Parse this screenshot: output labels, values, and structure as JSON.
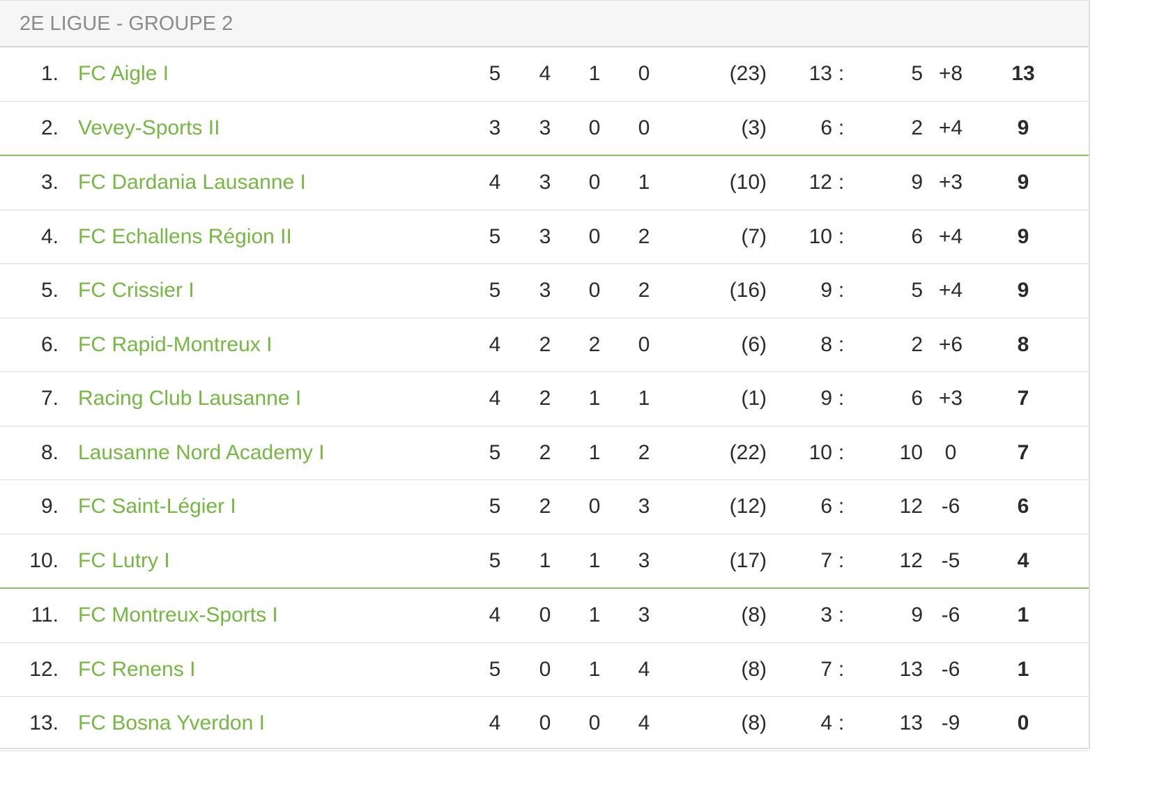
{
  "group": {
    "title": "2E LIGUE - GROUPE 2"
  },
  "colors": {
    "team_link": "#74b842",
    "divider": "#8bbf62"
  },
  "standings": [
    {
      "rank": "1.",
      "team": "FC Aigle I",
      "played": "5",
      "won": "4",
      "drawn": "1",
      "lost": "0",
      "fair_play": "(23)",
      "goals_for": "13",
      "colon": ":",
      "goals_against": "5",
      "diff": "+8",
      "points": "13"
    },
    {
      "rank": "2.",
      "team": "Vevey-Sports II",
      "played": "3",
      "won": "3",
      "drawn": "0",
      "lost": "0",
      "fair_play": "(3)",
      "goals_for": "6",
      "colon": ":",
      "goals_against": "2",
      "diff": "+4",
      "points": "9"
    },
    {
      "rank": "3.",
      "team": "FC Dardania Lausanne I",
      "played": "4",
      "won": "3",
      "drawn": "0",
      "lost": "1",
      "fair_play": "(10)",
      "goals_for": "12",
      "colon": ":",
      "goals_against": "9",
      "diff": "+3",
      "points": "9"
    },
    {
      "rank": "4.",
      "team": "FC Echallens Région II",
      "played": "5",
      "won": "3",
      "drawn": "0",
      "lost": "2",
      "fair_play": "(7)",
      "goals_for": "10",
      "colon": ":",
      "goals_against": "6",
      "diff": "+4",
      "points": "9"
    },
    {
      "rank": "5.",
      "team": "FC Crissier I",
      "played": "5",
      "won": "3",
      "drawn": "0",
      "lost": "2",
      "fair_play": "(16)",
      "goals_for": "9",
      "colon": ":",
      "goals_against": "5",
      "diff": "+4",
      "points": "9"
    },
    {
      "rank": "6.",
      "team": "FC Rapid-Montreux I",
      "played": "4",
      "won": "2",
      "drawn": "2",
      "lost": "0",
      "fair_play": "(6)",
      "goals_for": "8",
      "colon": ":",
      "goals_against": "2",
      "diff": "+6",
      "points": "8"
    },
    {
      "rank": "7.",
      "team": "Racing Club Lausanne I",
      "played": "4",
      "won": "2",
      "drawn": "1",
      "lost": "1",
      "fair_play": "(1)",
      "goals_for": "9",
      "colon": ":",
      "goals_against": "6",
      "diff": "+3",
      "points": "7"
    },
    {
      "rank": "8.",
      "team": "Lausanne Nord Academy I",
      "played": "5",
      "won": "2",
      "drawn": "1",
      "lost": "2",
      "fair_play": "(22)",
      "goals_for": "10",
      "colon": ":",
      "goals_against": "10",
      "diff": "0",
      "points": "7"
    },
    {
      "rank": "9.",
      "team": "FC Saint-Légier I",
      "played": "5",
      "won": "2",
      "drawn": "0",
      "lost": "3",
      "fair_play": "(12)",
      "goals_for": "6",
      "colon": ":",
      "goals_against": "12",
      "diff": "-6",
      "points": "6"
    },
    {
      "rank": "10.",
      "team": "FC Lutry I",
      "played": "5",
      "won": "1",
      "drawn": "1",
      "lost": "3",
      "fair_play": "(17)",
      "goals_for": "7",
      "colon": ":",
      "goals_against": "12",
      "diff": "-5",
      "points": "4"
    },
    {
      "rank": "11.",
      "team": "FC Montreux-Sports I",
      "played": "4",
      "won": "0",
      "drawn": "1",
      "lost": "3",
      "fair_play": "(8)",
      "goals_for": "3",
      "colon": ":",
      "goals_against": "9",
      "diff": "-6",
      "points": "1"
    },
    {
      "rank": "12.",
      "team": "FC Renens I",
      "played": "5",
      "won": "0",
      "drawn": "1",
      "lost": "4",
      "fair_play": "(8)",
      "goals_for": "7",
      "colon": ":",
      "goals_against": "13",
      "diff": "-6",
      "points": "1"
    },
    {
      "rank": "13.",
      "team": "FC Bosna Yverdon I",
      "played": "4",
      "won": "0",
      "drawn": "0",
      "lost": "4",
      "fair_play": "(8)",
      "goals_for": "4",
      "colon": ":",
      "goals_against": "13",
      "diff": "-9",
      "points": "0"
    }
  ]
}
